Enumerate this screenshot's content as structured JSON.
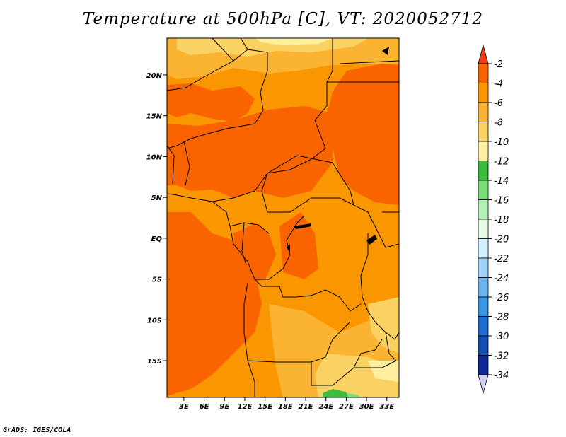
{
  "title": "Temperature at 500hPa [C], VT: 2020052712",
  "credit": "GrADS: IGES/COLA",
  "map": {
    "lat_labels": [
      "20N",
      "15N",
      "10N",
      "5N",
      "EQ",
      "5S",
      "10S",
      "15S"
    ],
    "lat_values": [
      20,
      15,
      10,
      5,
      0,
      -5,
      -10,
      -15
    ],
    "lon_labels": [
      "3E",
      "6E",
      "9E",
      "12E",
      "15E",
      "18E",
      "21E",
      "24E",
      "27E",
      "30E",
      "33E"
    ],
    "lon_values": [
      3,
      6,
      9,
      12,
      15,
      18,
      21,
      24,
      27,
      30,
      33
    ],
    "extent": {
      "lon_min": 0.5,
      "lon_max": 34.8,
      "lat_min": -19.5,
      "lat_max": 24.5
    }
  },
  "colorbar": {
    "labels": [
      "-2",
      "-4",
      "-6",
      "-8",
      "-10",
      "-12",
      "-14",
      "-16",
      "-18",
      "-20",
      "-22",
      "-24",
      "-26",
      "-28",
      "-30",
      "-32",
      "-34"
    ],
    "colors": [
      "#f03c10",
      "#fa6400",
      "#fa9600",
      "#fab432",
      "#fad264",
      "#fff0a0",
      "#3cbe3c",
      "#78dc78",
      "#b4f0b4",
      "#e6fae6",
      "#d2f0ff",
      "#a0d2fa",
      "#6eb4f0",
      "#3c96e6",
      "#1e6ed2",
      "#1450b4",
      "#0a2896",
      "#0a0a64",
      "#d2d2f0"
    ]
  }
}
